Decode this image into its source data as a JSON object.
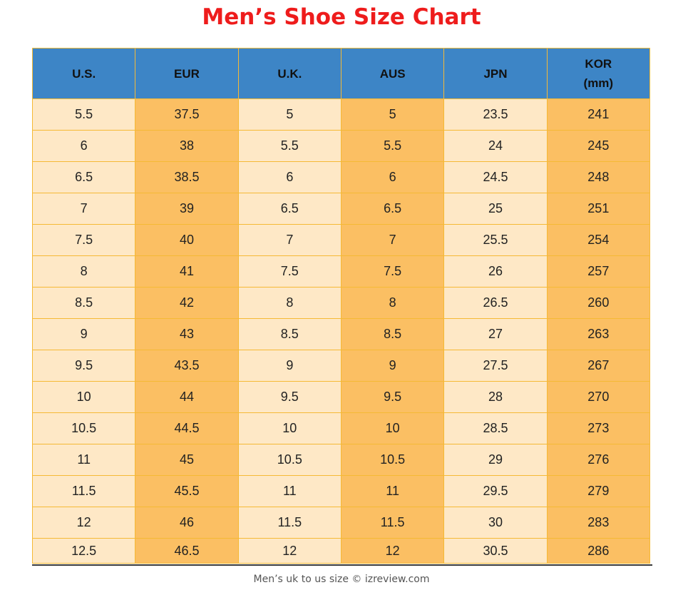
{
  "chart_data": {
    "type": "table",
    "title": "Men’s Shoe Size Chart",
    "columns": [
      "U.S.",
      "EUR",
      "U.K.",
      "AUS",
      "JPN",
      "KOR\n(mm)"
    ],
    "rows": [
      [
        "5.5",
        "37.5",
        "5",
        "5",
        "23.5",
        "241"
      ],
      [
        "6",
        "38",
        "5.5",
        "5.5",
        "24",
        "245"
      ],
      [
        "6.5",
        "38.5",
        "6",
        "6",
        "24.5",
        "248"
      ],
      [
        "7",
        "39",
        "6.5",
        "6.5",
        "25",
        "251"
      ],
      [
        "7.5",
        "40",
        "7",
        "7",
        "25.5",
        "254"
      ],
      [
        "8",
        "41",
        "7.5",
        "7.5",
        "26",
        "257"
      ],
      [
        "8.5",
        "42",
        "8",
        "8",
        "26.5",
        "260"
      ],
      [
        "9",
        "43",
        "8.5",
        "8.5",
        "27",
        "263"
      ],
      [
        "9.5",
        "43.5",
        "9",
        "9",
        "27.5",
        "267"
      ],
      [
        "10",
        "44",
        "9.5",
        "9.5",
        "28",
        "270"
      ],
      [
        "10.5",
        "44.5",
        "10",
        "10",
        "28.5",
        "273"
      ],
      [
        "11",
        "45",
        "10.5",
        "10.5",
        "29",
        "276"
      ],
      [
        "11.5",
        "45.5",
        "11",
        "11",
        "29.5",
        "279"
      ],
      [
        "12",
        "46",
        "11.5",
        "11.5",
        "30",
        "283"
      ],
      [
        "12.5",
        "46.5",
        "12",
        "12",
        "30.5",
        "286"
      ]
    ]
  },
  "caption": "Men’s uk to us size © izreview.com",
  "colors": {
    "title": "#ee1c1c",
    "header_bg": "#3d85c6",
    "light_column": "#fee8c6",
    "dark_column": "#fbbf63",
    "grid": "#f5b935"
  }
}
